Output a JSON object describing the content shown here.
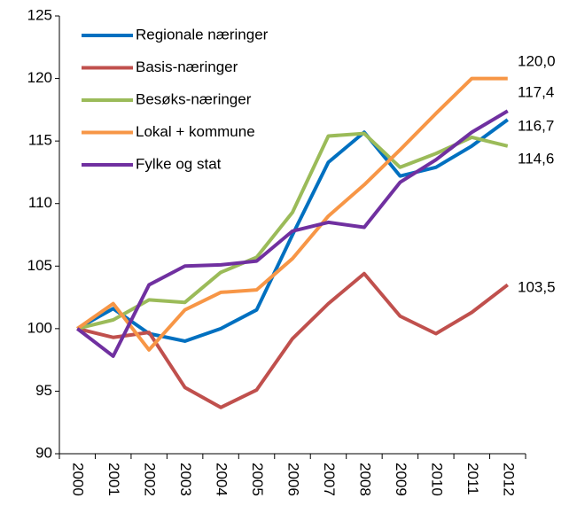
{
  "chart_data": {
    "type": "line",
    "categories": [
      "2000",
      "2001",
      "2002",
      "2003",
      "2004",
      "2005",
      "2006",
      "2007",
      "2008",
      "2009",
      "2010",
      "2011",
      "2012"
    ],
    "series": [
      {
        "name": "Regionale næringer",
        "color": "#0070c0",
        "values": [
          100,
          101.6,
          99.6,
          99.0,
          100.0,
          101.5,
          107.5,
          113.3,
          115.7,
          112.2,
          112.9,
          114.6,
          116.7
        ],
        "value_labels": [
          null,
          null,
          null,
          null,
          null,
          null,
          null,
          null,
          null,
          null,
          null,
          null,
          "116,7"
        ]
      },
      {
        "name": "Basis-næringer",
        "color": "#c0504d",
        "values": [
          100,
          99.3,
          99.7,
          95.3,
          93.7,
          95.1,
          99.2,
          102.0,
          104.4,
          101.0,
          99.6,
          101.3,
          103.5
        ],
        "value_labels": [
          null,
          null,
          null,
          null,
          null,
          null,
          null,
          null,
          null,
          null,
          null,
          null,
          "103,5"
        ]
      },
      {
        "name": "Besøks-næringer",
        "color": "#9bbb59",
        "values": [
          100,
          100.7,
          102.3,
          102.1,
          104.5,
          105.7,
          109.3,
          115.4,
          115.6,
          112.9,
          114.0,
          115.3,
          114.6
        ],
        "value_labels": [
          null,
          null,
          null,
          null,
          null,
          null,
          null,
          null,
          null,
          null,
          null,
          null,
          "114,6"
        ]
      },
      {
        "name": "Lokal + kommune",
        "color": "#f79646",
        "values": [
          100,
          102.0,
          98.3,
          101.5,
          102.9,
          103.1,
          105.6,
          109.0,
          111.5,
          114.3,
          117.2,
          120.0,
          120.0
        ],
        "value_labels": [
          null,
          null,
          null,
          null,
          null,
          null,
          null,
          null,
          null,
          null,
          null,
          null,
          "120,0"
        ]
      },
      {
        "name": "Fylke og stat",
        "color": "#7030a0",
        "values": [
          100,
          97.8,
          103.5,
          105.0,
          105.1,
          105.4,
          107.8,
          108.5,
          108.1,
          111.7,
          113.5,
          115.7,
          117.4
        ],
        "value_labels": [
          null,
          null,
          null,
          null,
          null,
          null,
          null,
          null,
          null,
          null,
          null,
          null,
          "117,4"
        ]
      }
    ],
    "ylim": [
      90,
      125
    ],
    "yticks": [
      90,
      95,
      100,
      105,
      110,
      115,
      120,
      125
    ],
    "grid": false,
    "legend": "upper left"
  }
}
